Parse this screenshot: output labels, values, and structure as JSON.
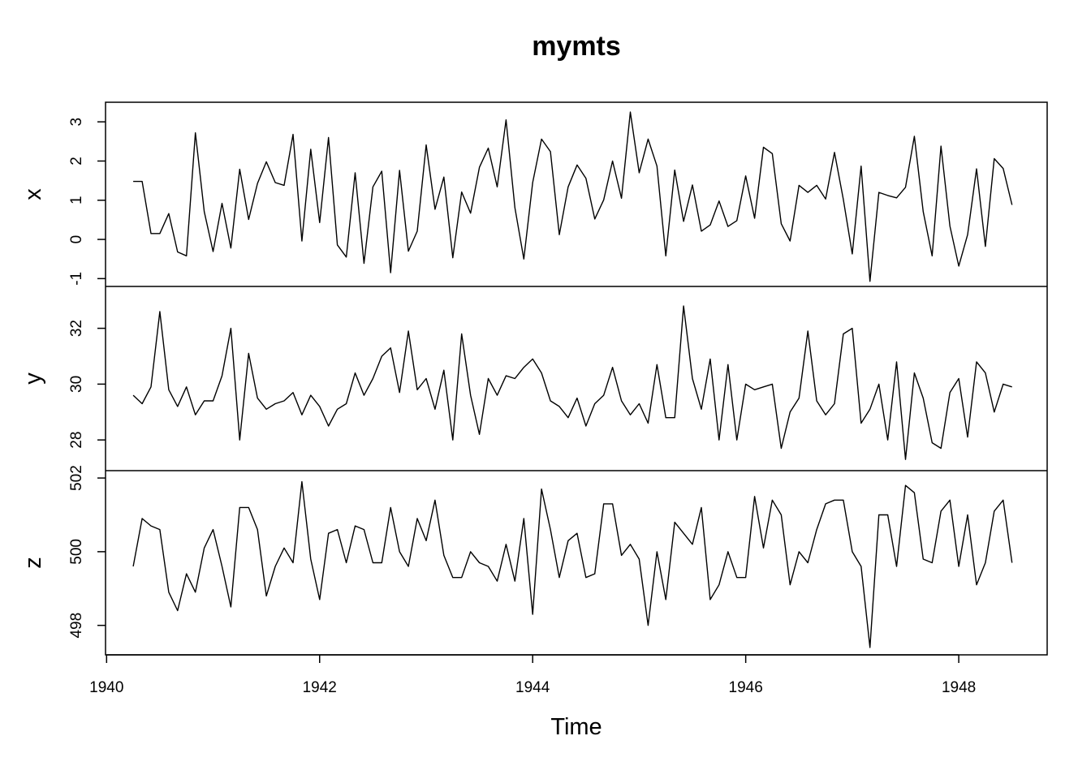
{
  "chart_data": {
    "type": "line",
    "title": "mymts",
    "xlabel": "Time",
    "xlim": [
      1939.99,
      1948.83
    ],
    "x_start": 1940.25,
    "x_step": 0.0833333,
    "x_ticks": [
      "1940",
      "1942",
      "1944",
      "1946",
      "1948"
    ],
    "x_tick_values": [
      1940,
      1942,
      1944,
      1946,
      1948
    ],
    "grid": false,
    "panels": [
      {
        "name": "x",
        "ylim": [
          -1.2,
          3.5
        ],
        "y_ticks": [
          "-1",
          "0",
          "1",
          "2",
          "3"
        ],
        "y_tick_values": [
          -1,
          0,
          1,
          2,
          3
        ],
        "values": [
          1.48,
          1.48,
          0.15,
          0.15,
          0.66,
          -0.32,
          -0.42,
          2.72,
          0.71,
          -0.31,
          0.92,
          -0.22,
          1.79,
          0.51,
          1.43,
          1.98,
          1.45,
          1.38,
          2.68,
          -0.04,
          2.3,
          0.43,
          2.6,
          -0.14,
          -0.45,
          1.7,
          -0.61,
          1.34,
          1.74,
          -0.85,
          1.76,
          -0.3,
          0.21,
          2.41,
          0.77,
          1.59,
          -0.47,
          1.21,
          0.67,
          1.84,
          2.33,
          1.34,
          3.05,
          0.81,
          -0.5,
          1.45,
          2.56,
          2.24,
          0.12,
          1.34,
          1.9,
          1.56,
          0.52,
          1.01,
          2.0,
          1.05,
          3.25,
          1.7,
          2.56,
          1.87,
          -0.42,
          1.77,
          0.46,
          1.39,
          0.21,
          0.37,
          0.98,
          0.33,
          0.48,
          1.62,
          0.54,
          2.35,
          2.19,
          0.4,
          -0.04,
          1.38,
          1.2,
          1.38,
          1.03,
          2.22,
          1.02,
          -0.37,
          1.87,
          -1.07,
          1.2,
          1.12,
          1.06,
          1.33,
          2.63,
          0.71,
          -0.42,
          2.38,
          0.34,
          -0.68,
          0.12,
          1.8,
          -0.18,
          2.06,
          1.81,
          0.88
        ]
      },
      {
        "name": "y",
        "ylim": [
          26.9,
          33.5
        ],
        "y_ticks": [
          "28",
          "30",
          "32"
        ],
        "y_tick_values": [
          28,
          30,
          32
        ],
        "values": [
          29.6,
          29.3,
          29.9,
          32.6,
          29.8,
          29.2,
          29.9,
          28.9,
          29.4,
          29.4,
          30.3,
          32.0,
          28.0,
          31.1,
          29.5,
          29.1,
          29.3,
          29.4,
          29.7,
          28.9,
          29.6,
          29.2,
          28.5,
          29.1,
          29.3,
          30.4,
          29.6,
          30.2,
          31.0,
          31.3,
          29.7,
          31.9,
          29.8,
          30.2,
          29.1,
          30.5,
          28.0,
          31.8,
          29.6,
          28.2,
          30.2,
          29.6,
          30.3,
          30.2,
          30.6,
          30.9,
          30.4,
          29.4,
          29.2,
          28.8,
          29.5,
          28.5,
          29.3,
          29.6,
          30.6,
          29.4,
          28.9,
          29.3,
          28.6,
          30.7,
          28.8,
          28.8,
          32.8,
          30.2,
          29.1,
          30.9,
          28.0,
          30.7,
          28.0,
          30.0,
          29.8,
          29.9,
          30.0,
          27.7,
          29.0,
          29.5,
          31.9,
          29.4,
          28.9,
          29.3,
          31.8,
          32.0,
          28.6,
          29.1,
          30.0,
          28.0,
          30.8,
          27.3,
          30.4,
          29.5,
          27.9,
          27.7,
          29.7,
          30.2,
          28.1,
          30.8,
          30.4,
          29.0,
          30.0,
          29.9
        ]
      },
      {
        "name": "z",
        "ylim": [
          497.2,
          502.2
        ],
        "y_ticks": [
          "498",
          "500",
          "502"
        ],
        "y_tick_values": [
          498,
          500,
          502
        ],
        "values": [
          499.6,
          500.9,
          500.7,
          500.6,
          498.9,
          498.4,
          499.4,
          498.9,
          500.1,
          500.6,
          499.6,
          498.5,
          501.2,
          501.2,
          500.6,
          498.8,
          499.6,
          500.1,
          499.7,
          501.9,
          499.8,
          498.7,
          500.5,
          500.6,
          499.7,
          500.7,
          500.6,
          499.7,
          499.7,
          501.2,
          500.0,
          499.6,
          500.9,
          500.3,
          501.4,
          499.9,
          499.3,
          499.3,
          500.0,
          499.7,
          499.6,
          499.2,
          500.2,
          499.2,
          500.9,
          498.3,
          501.7,
          500.6,
          499.3,
          500.3,
          500.5,
          499.3,
          499.4,
          501.3,
          501.3,
          499.9,
          500.2,
          499.8,
          498.0,
          500.0,
          498.7,
          500.8,
          500.5,
          500.2,
          501.2,
          498.7,
          499.1,
          500.0,
          499.3,
          499.3,
          501.5,
          500.1,
          501.4,
          501.0,
          499.1,
          500.0,
          499.7,
          500.6,
          501.3,
          501.4,
          501.4,
          500.0,
          499.6,
          497.4,
          501.0,
          501.0,
          499.6,
          501.8,
          501.6,
          499.8,
          499.7,
          501.1,
          501.4,
          499.6,
          501.0,
          499.1,
          499.7,
          501.1,
          501.4,
          499.7
        ]
      }
    ]
  }
}
